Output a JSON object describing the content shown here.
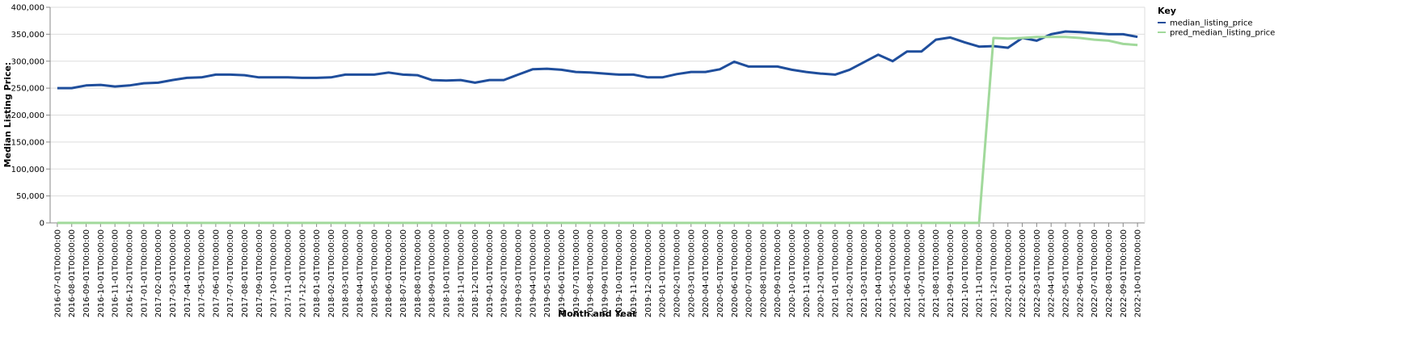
{
  "chart_data": {
    "type": "line",
    "x_label": "Month and Year",
    "y_label": "Median Listing Price:",
    "legend_title": "Key",
    "legend": "top-right",
    "grid": true,
    "categories": [
      "2016-07-01T00:00:00",
      "2016-08-01T00:00:00",
      "2016-09-01T00:00:00",
      "2016-10-01T00:00:00",
      "2016-11-01T00:00:00",
      "2016-12-01T00:00:00",
      "2017-01-01T00:00:00",
      "2017-02-01T00:00:00",
      "2017-03-01T00:00:00",
      "2017-04-01T00:00:00",
      "2017-05-01T00:00:00",
      "2017-06-01T00:00:00",
      "2017-07-01T00:00:00",
      "2017-08-01T00:00:00",
      "2017-09-01T00:00:00",
      "2017-10-01T00:00:00",
      "2017-11-01T00:00:00",
      "2017-12-01T00:00:00",
      "2018-01-01T00:00:00",
      "2018-02-01T00:00:00",
      "2018-03-01T00:00:00",
      "2018-04-01T00:00:00",
      "2018-05-01T00:00:00",
      "2018-06-01T00:00:00",
      "2018-07-01T00:00:00",
      "2018-08-01T00:00:00",
      "2018-09-01T00:00:00",
      "2018-10-01T00:00:00",
      "2018-11-01T00:00:00",
      "2018-12-01T00:00:00",
      "2019-01-01T00:00:00",
      "2019-02-01T00:00:00",
      "2019-03-01T00:00:00",
      "2019-04-01T00:00:00",
      "2019-05-01T00:00:00",
      "2019-06-01T00:00:00",
      "2019-07-01T00:00:00",
      "2019-08-01T00:00:00",
      "2019-09-01T00:00:00",
      "2019-10-01T00:00:00",
      "2019-11-01T00:00:00",
      "2019-12-01T00:00:00",
      "2020-01-01T00:00:00",
      "2020-02-01T00:00:00",
      "2020-03-01T00:00:00",
      "2020-04-01T00:00:00",
      "2020-05-01T00:00:00",
      "2020-06-01T00:00:00",
      "2020-07-01T00:00:00",
      "2020-08-01T00:00:00",
      "2020-09-01T00:00:00",
      "2020-10-01T00:00:00",
      "2020-11-01T00:00:00",
      "2020-12-01T00:00:00",
      "2021-01-01T00:00:00",
      "2021-02-01T00:00:00",
      "2021-03-01T00:00:00",
      "2021-04-01T00:00:00",
      "2021-05-01T00:00:00",
      "2021-06-01T00:00:00",
      "2021-07-01T00:00:00",
      "2021-08-01T00:00:00",
      "2021-09-01T00:00:00",
      "2021-10-01T00:00:00",
      "2021-11-01T00:00:00",
      "2021-12-01T00:00:00",
      "2022-01-01T00:00:00",
      "2022-02-01T00:00:00",
      "2022-03-01T00:00:00",
      "2022-04-01T00:00:00",
      "2022-05-01T00:00:00",
      "2022-06-01T00:00:00",
      "2022-07-01T00:00:00",
      "2022-08-01T00:00:00",
      "2022-09-01T00:00:00",
      "2022-10-01T00:00:00"
    ],
    "series": [
      {
        "name": "median_listing_price",
        "color": "#1f4e9c",
        "values": [
          250000,
          250000,
          255000,
          256000,
          253000,
          255000,
          259000,
          260000,
          265000,
          269000,
          270000,
          275000,
          275000,
          274000,
          270000,
          270000,
          270000,
          269000,
          269000,
          270000,
          275000,
          275000,
          275000,
          279000,
          275000,
          274000,
          265000,
          264000,
          265000,
          260000,
          265000,
          265000,
          275000,
          285000,
          286000,
          284000,
          280000,
          279000,
          277000,
          275000,
          275000,
          270000,
          270000,
          276000,
          280000,
          280000,
          285000,
          299000,
          290000,
          290000,
          290000,
          284000,
          280000,
          277000,
          275000,
          284000,
          298000,
          312000,
          300000,
          318000,
          318000,
          340000,
          344000,
          335000,
          327000,
          328000,
          325000,
          343000,
          338000,
          350000,
          355000,
          354000,
          352000,
          350000,
          350000,
          345000
        ]
      },
      {
        "name": "pred_median_listing_price",
        "color": "#a1d99b",
        "values": [
          0,
          0,
          0,
          0,
          0,
          0,
          0,
          0,
          0,
          0,
          0,
          0,
          0,
          0,
          0,
          0,
          0,
          0,
          0,
          0,
          0,
          0,
          0,
          0,
          0,
          0,
          0,
          0,
          0,
          0,
          0,
          0,
          0,
          0,
          0,
          0,
          0,
          0,
          0,
          0,
          0,
          0,
          0,
          0,
          0,
          0,
          0,
          0,
          0,
          0,
          0,
          0,
          0,
          0,
          0,
          0,
          0,
          0,
          0,
          0,
          0,
          0,
          0,
          0,
          0,
          343000,
          342000,
          343000,
          345000,
          345000,
          345000,
          343000,
          340000,
          338000,
          332000,
          330000
        ]
      }
    ],
    "ylim": [
      0,
      400000
    ],
    "yticks": [
      0,
      {
        "value": 50000,
        "label": "50,000"
      },
      {
        "value": 100000,
        "label": "100,000"
      },
      {
        "value": 150000,
        "label": "150,000"
      },
      {
        "value": 200000,
        "label": "200,000"
      },
      {
        "value": 250000,
        "label": "250,000"
      },
      {
        "value": 300000,
        "label": "300,000"
      },
      {
        "value": 350000,
        "label": "350,000"
      },
      {
        "value": 400000,
        "label": "400,000"
      }
    ]
  }
}
